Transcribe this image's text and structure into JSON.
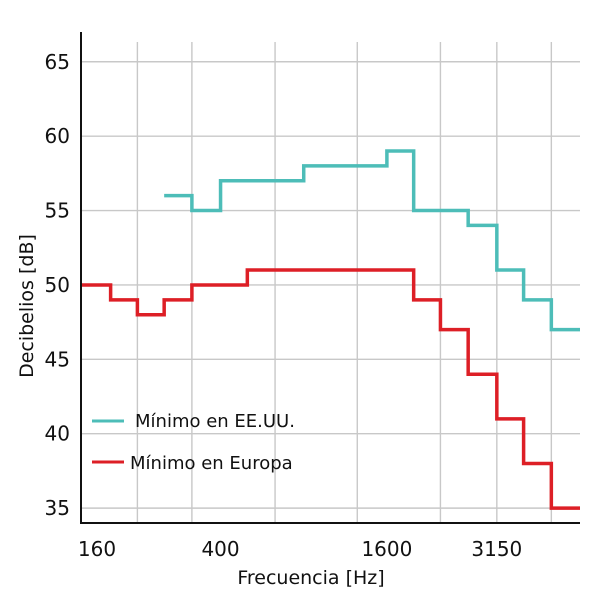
{
  "chart_data": {
    "type": "line",
    "xlabel": "Frecuencia [Hz]",
    "ylabel": "Decibelios [dB]",
    "ylim": [
      34,
      67
    ],
    "x_tick_labels": [
      "160",
      "400",
      "1600",
      "3150"
    ],
    "y_ticks": [
      35,
      40,
      45,
      50,
      55,
      60,
      65
    ],
    "grid": true,
    "legend_position": "bottom-left",
    "series": [
      {
        "name": "Mínimo en EE.UU.",
        "color": "#4dbdb8",
        "steps": [
          {
            "x0": 250,
            "x1": 315,
            "y": 56
          },
          {
            "x0": 315,
            "x1": 400,
            "y": 55
          },
          {
            "x0": 400,
            "x1": 800,
            "y": 57
          },
          {
            "x0": 800,
            "x1": 1600,
            "y": 58
          },
          {
            "x0": 1600,
            "x1": 2000,
            "y": 59
          },
          {
            "x0": 2000,
            "x1": 3150,
            "y": 55
          },
          {
            "x0": 3150,
            "x1": 4000,
            "y": 54
          },
          {
            "x0": 4000,
            "x1": 5000,
            "y": 51
          },
          {
            "x0": 5000,
            "x1": 6300,
            "y": 49
          },
          {
            "x0": 6300,
            "x1": 8000,
            "y": 47
          }
        ]
      },
      {
        "name": "Mínimo en Europa",
        "color": "#dd1f26",
        "steps": [
          {
            "x0": 125,
            "x1": 160,
            "y": 50
          },
          {
            "x0": 160,
            "x1": 200,
            "y": 49
          },
          {
            "x0": 200,
            "x1": 250,
            "y": 48
          },
          {
            "x0": 250,
            "x1": 315,
            "y": 49
          },
          {
            "x0": 315,
            "x1": 500,
            "y": 50
          },
          {
            "x0": 500,
            "x1": 2000,
            "y": 51
          },
          {
            "x0": 2000,
            "x1": 2500,
            "y": 49
          },
          {
            "x0": 2500,
            "x1": 3150,
            "y": 47
          },
          {
            "x0": 3150,
            "x1": 4000,
            "y": 44
          },
          {
            "x0": 4000,
            "x1": 5000,
            "y": 41
          },
          {
            "x0": 5000,
            "x1": 6300,
            "y": 38
          },
          {
            "x0": 6300,
            "x1": 8000,
            "y": 35
          }
        ]
      }
    ]
  }
}
